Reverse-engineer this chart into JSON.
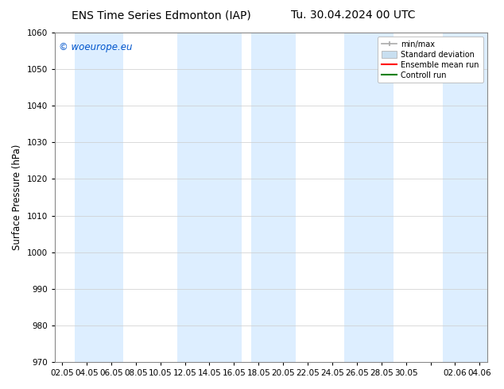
{
  "title_left": "ENS Time Series Edmonton (IAP)",
  "title_right": "Tu. 30.04.2024 00 UTC",
  "ylabel": "Surface Pressure (hPa)",
  "ylim": [
    970,
    1060
  ],
  "yticks": [
    970,
    980,
    990,
    1000,
    1010,
    1020,
    1030,
    1040,
    1050,
    1060
  ],
  "x_tick_labels": [
    "02.05",
    "04.05",
    "06.05",
    "08.05",
    "10.05",
    "12.05",
    "14.05",
    "16.05",
    "18.05",
    "20.05",
    "22.05",
    "24.05",
    "26.05",
    "28.05",
    "30.05",
    "",
    "02.06",
    "04.06"
  ],
  "watermark": "© woeurope.eu",
  "watermark_color": "#0055cc",
  "bg_color": "#ffffff",
  "plot_bg_color": "#ffffff",
  "band_color": "#ddeeff",
  "legend_items": [
    "min/max",
    "Standard deviation",
    "Ensemble mean run",
    "Controll run"
  ],
  "legend_colors": [
    "#aaaaaa",
    "#c8dff0",
    "#ff0000",
    "#008000"
  ],
  "title_fontsize": 10,
  "axis_fontsize": 8.5,
  "tick_fontsize": 7.5
}
